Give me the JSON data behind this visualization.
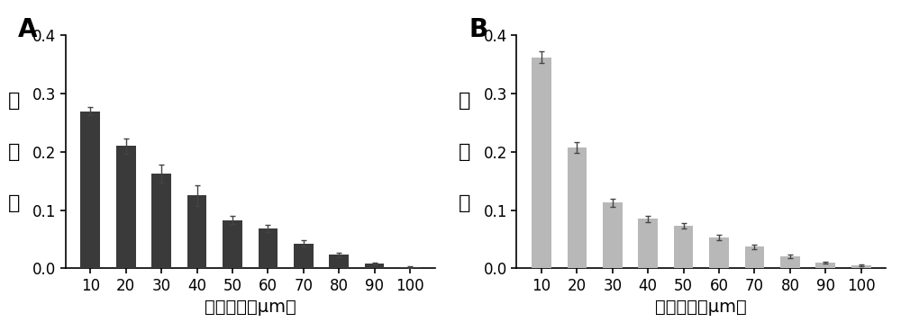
{
  "panel_A": {
    "categories": [
      10,
      20,
      30,
      40,
      50,
      60,
      70,
      80,
      90,
      100
    ],
    "values": [
      0.27,
      0.21,
      0.163,
      0.125,
      0.083,
      0.068,
      0.043,
      0.023,
      0.008,
      0.002
    ],
    "errors": [
      0.007,
      0.013,
      0.015,
      0.018,
      0.007,
      0.006,
      0.006,
      0.004,
      0.002,
      0.001
    ],
    "bar_color": "#3a3a3a",
    "label": "A"
  },
  "panel_B": {
    "categories": [
      10,
      20,
      30,
      40,
      50,
      60,
      70,
      80,
      90,
      100
    ],
    "values": [
      0.362,
      0.207,
      0.113,
      0.085,
      0.073,
      0.053,
      0.037,
      0.02,
      0.01,
      0.005
    ],
    "errors": [
      0.01,
      0.009,
      0.007,
      0.005,
      0.004,
      0.004,
      0.004,
      0.003,
      0.002,
      0.001
    ],
    "bar_color": "#b8b8b8",
    "label": "B"
  },
  "ylabel_chars": [
    "分",
    "布",
    "率"
  ],
  "xlabel": "液滴直径（μm）",
  "ylim": [
    0,
    0.4
  ],
  "yticks": [
    0.0,
    0.1,
    0.2,
    0.3,
    0.4
  ],
  "background_color": "#ffffff",
  "bar_width": 5.5,
  "label_fontsize": 20,
  "axis_fontsize": 14,
  "tick_fontsize": 12,
  "ylabel_fontsize": 16
}
